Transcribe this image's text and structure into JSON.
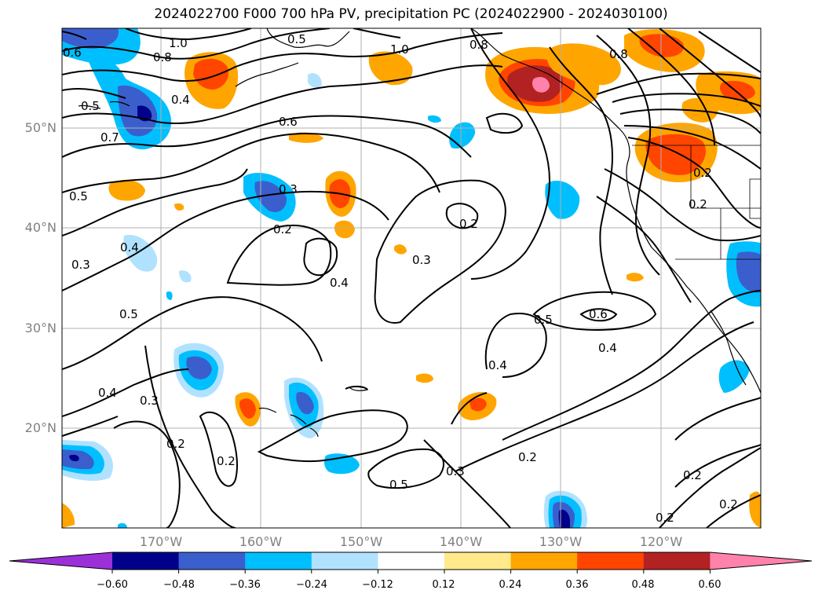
{
  "title": "2024022700 F000 700 hPa PV, precipitation PC (2024022900 - 2024030100)",
  "lat_labels": [
    "50°N",
    "40°N",
    "30°N",
    "20°N"
  ],
  "lon_labels": [
    "170°W",
    "160°W",
    "150°W",
    "140°W",
    "130°W",
    "120°W"
  ],
  "colorbar": {
    "ticks": [
      "−0.60",
      "−0.48",
      "−0.36",
      "−0.24",
      "−0.12",
      "0.12",
      "0.24",
      "0.36",
      "0.48",
      "0.60"
    ],
    "colors": [
      "#9b30d9",
      "#00008b",
      "#3a5fcd",
      "#00bfff",
      "#b0e2ff",
      "#ffffff",
      "#ffe98a",
      "#ffa500",
      "#ff4500",
      "#b22222",
      "#ff82ab"
    ]
  },
  "contour_labels": [
    "1.0",
    "0.8",
    "0.6",
    "0.5",
    "0.7",
    "0.4",
    "0.5",
    "0.3",
    "0.4",
    "0.5",
    "0.4",
    "0.3",
    "0.2",
    "0.2",
    "1.0",
    "0.6",
    "0.3",
    "0.2",
    "0.4",
    "0.3",
    "0.2",
    "0.8",
    "0.8",
    "0.2",
    "0.2",
    "0.5",
    "0.6",
    "0.4",
    "0.4",
    "0.3",
    "0.5",
    "0.2",
    "0.2",
    "0.2",
    "0.2",
    "0.5"
  ]
}
